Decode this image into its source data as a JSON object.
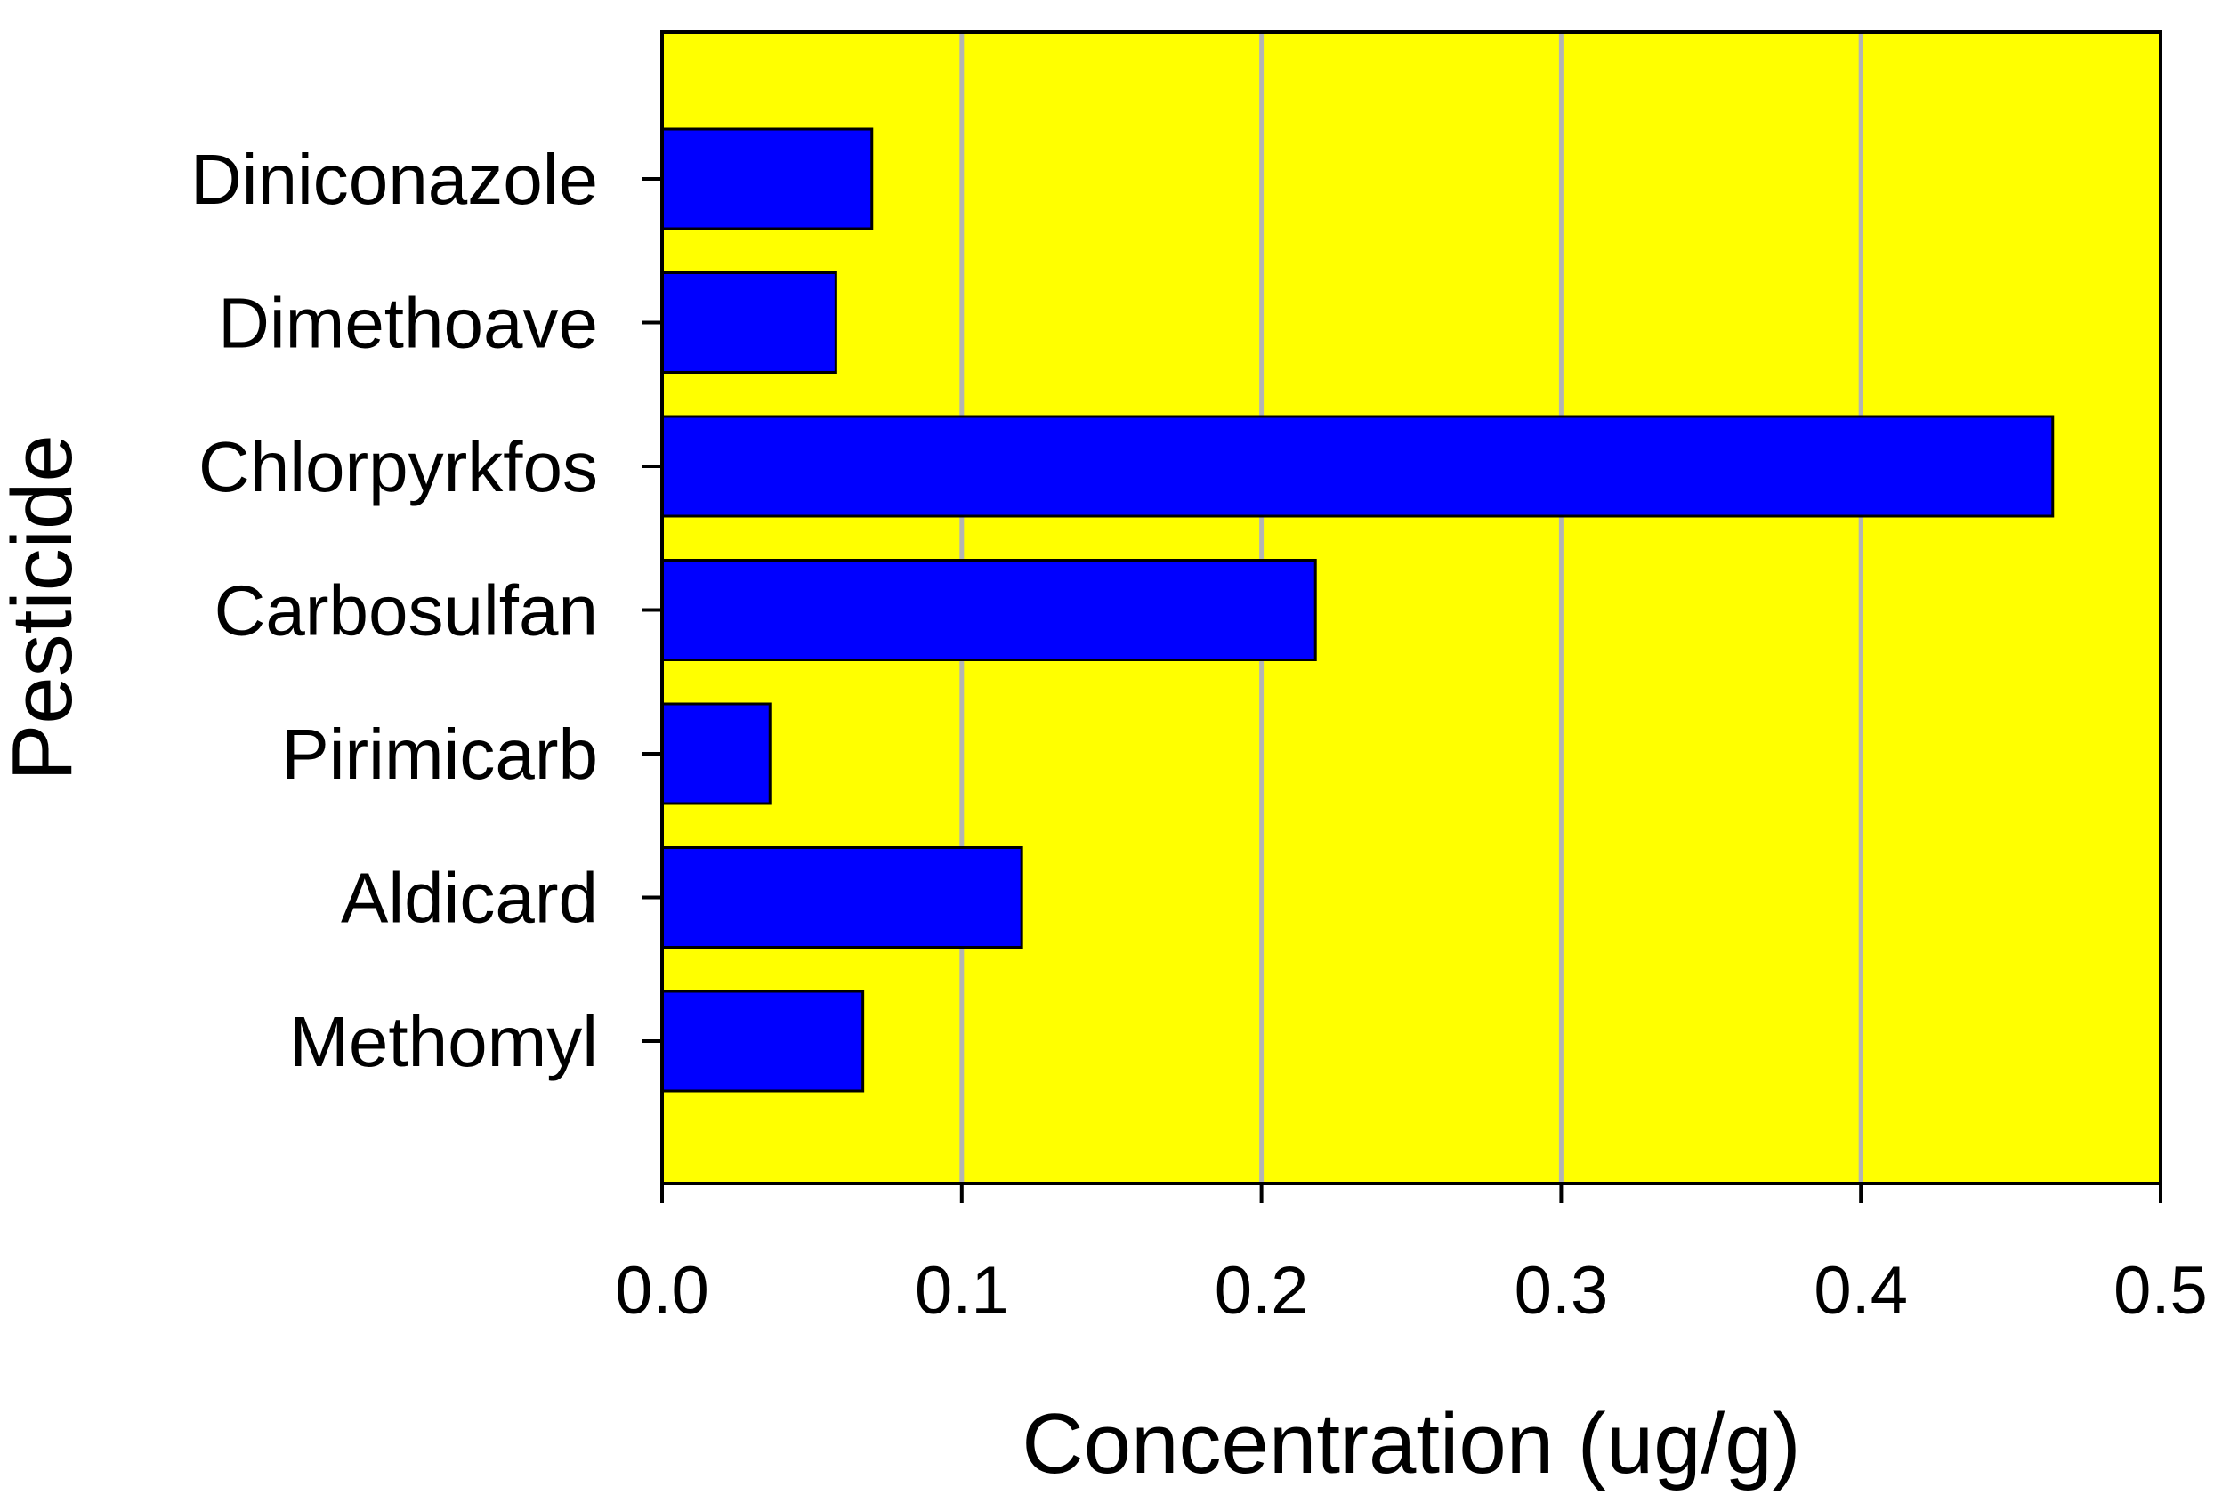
{
  "chart_data": {
    "type": "bar",
    "orientation": "horizontal",
    "categories": [
      "Diniconazole",
      "Dimethoave",
      "Chlorpyrkfos",
      "Carbosulfan",
      "Pirimicarb",
      "Aldicard",
      "Methomyl"
    ],
    "values": [
      0.07,
      0.058,
      0.464,
      0.218,
      0.036,
      0.12,
      0.067
    ],
    "xlabel": "Concentration (ug/g)",
    "ylabel": "Pesticide",
    "xlim": [
      0,
      0.5
    ],
    "xticks": [
      "0.0",
      "0.1",
      "0.2",
      "0.3",
      "0.4",
      "0.5"
    ],
    "grid": "vertical",
    "colors": {
      "bar_fill": "#0000ff",
      "bar_stroke": "#000000",
      "plot_background": "#ffff00",
      "gridline": "#b4b4b4"
    }
  }
}
